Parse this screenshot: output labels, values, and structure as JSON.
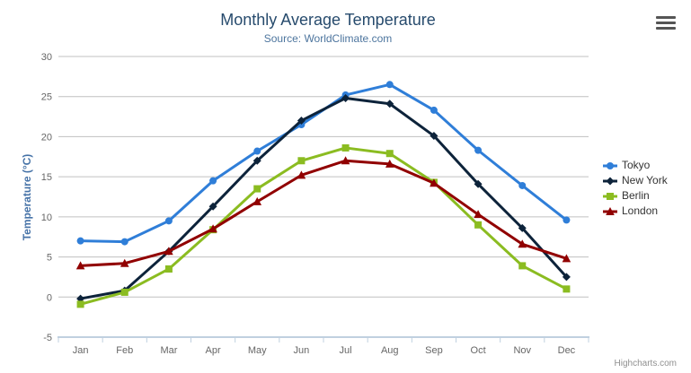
{
  "chart_data": {
    "type": "line",
    "title": "Monthly Average Temperature",
    "subtitle": "Source: WorldClimate.com",
    "categories": [
      "Jan",
      "Feb",
      "Mar",
      "Apr",
      "May",
      "Jun",
      "Jul",
      "Aug",
      "Sep",
      "Oct",
      "Nov",
      "Dec"
    ],
    "xlabel": "",
    "ylabel": "Temperature (°C)",
    "ylim": [
      -5,
      30
    ],
    "ytick_interval": 5,
    "grid": true,
    "legend_position": "right",
    "series": [
      {
        "name": "Tokyo",
        "color": "#2f7ed8",
        "marker": "circle",
        "values": [
          7.0,
          6.9,
          9.5,
          14.5,
          18.2,
          21.5,
          25.2,
          26.5,
          23.3,
          18.3,
          13.9,
          9.6
        ]
      },
      {
        "name": "New York",
        "color": "#0d233a",
        "marker": "diamond",
        "values": [
          -0.2,
          0.8,
          5.7,
          11.3,
          17.0,
          22.0,
          24.8,
          24.1,
          20.1,
          14.1,
          8.6,
          2.5
        ]
      },
      {
        "name": "Berlin",
        "color": "#8bbc21",
        "marker": "square",
        "values": [
          -0.9,
          0.6,
          3.5,
          8.4,
          13.5,
          17.0,
          18.6,
          17.9,
          14.3,
          9.0,
          3.9,
          1.0
        ]
      },
      {
        "name": "London",
        "color": "#910000",
        "marker": "triangle",
        "values": [
          3.9,
          4.2,
          5.7,
          8.5,
          11.9,
          15.2,
          17.0,
          16.6,
          14.2,
          10.3,
          6.6,
          4.8
        ]
      }
    ]
  },
  "colors": {
    "title": "#274b6d",
    "subtitle": "#4d759e",
    "axis_title": "#4572a7",
    "axis_labels": "#666666",
    "grid_line": "#c0c0c0",
    "axis_line": "#c0d0e0",
    "legend_text": "#333333",
    "credits_text": "#909090",
    "menu_icon": "#555555"
  },
  "menu": {
    "icon": "hamburger-icon"
  },
  "credits": {
    "label": "Highcharts.com"
  }
}
